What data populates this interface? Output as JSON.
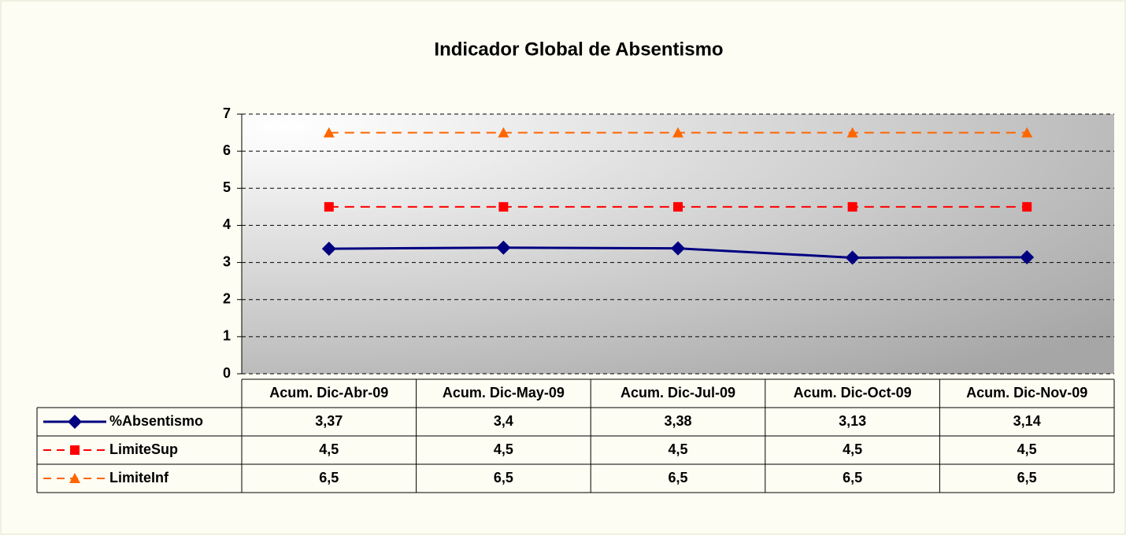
{
  "chart_data": {
    "type": "line",
    "title": "Indicador Global de Absentismo",
    "categories": [
      "Acum. Dic-Abr-09",
      "Acum. Dic-May-09",
      "Acum. Dic-Jul-09",
      "Acum. Dic-Oct-09",
      "Acum. Dic-Nov-09"
    ],
    "series": [
      {
        "name": "%Absentismo",
        "color": "#000080",
        "marker": "diamond",
        "dash": false,
        "values": [
          3.37,
          3.4,
          3.38,
          3.13,
          3.14
        ],
        "value_labels": [
          "3,37",
          "3,4",
          "3,38",
          "3,13",
          "3,14"
        ]
      },
      {
        "name": "LimiteSup",
        "color": "#ff0000",
        "marker": "square",
        "dash": true,
        "values": [
          4.5,
          4.5,
          4.5,
          4.5,
          4.5
        ],
        "value_labels": [
          "4,5",
          "4,5",
          "4,5",
          "4,5",
          "4,5"
        ]
      },
      {
        "name": "LimiteInf",
        "color": "#ff6600",
        "marker": "triangle",
        "dash": true,
        "values": [
          6.5,
          6.5,
          6.5,
          6.5,
          6.5
        ],
        "value_labels": [
          "6,5",
          "6,5",
          "6,5",
          "6,5",
          "6,5"
        ]
      }
    ],
    "ylim": [
      0,
      7
    ],
    "yticks": [
      0,
      1,
      2,
      3,
      4,
      5,
      6,
      7
    ],
    "grid": true
  }
}
